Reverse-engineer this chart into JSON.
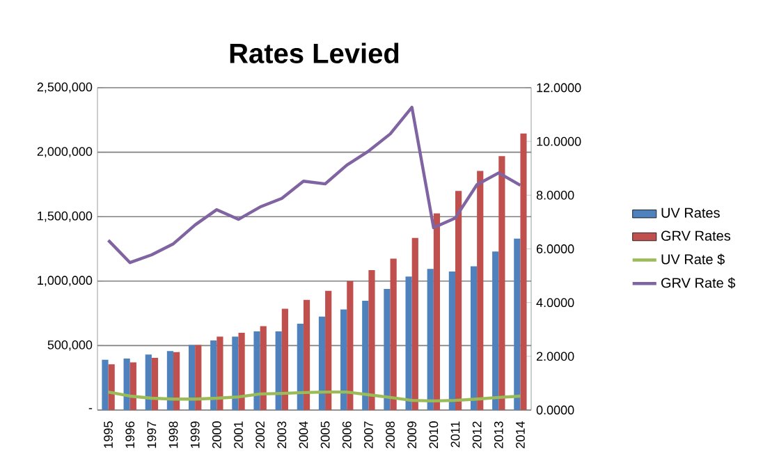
{
  "chart_data": {
    "type": "bar",
    "title": "Rates Levied",
    "categories": [
      "1995",
      "1996",
      "1997",
      "1998",
      "1999",
      "2000",
      "2001",
      "2002",
      "2003",
      "2004",
      "2005",
      "2006",
      "2007",
      "2008",
      "2009",
      "2010",
      "2011",
      "2012",
      "2013",
      "2014"
    ],
    "series": [
      {
        "name": "UV Rates",
        "color": "#4f81bd",
        "values": [
          390000,
          400000,
          430000,
          458000,
          505000,
          540000,
          570000,
          610000,
          610000,
          670000,
          725000,
          780000,
          848000,
          940000,
          1035000,
          1095000,
          1075000,
          1115000,
          1230000,
          1330000
        ]
      },
      {
        "name": "GRV Rates",
        "color": "#c0504d",
        "values": [
          355000,
          370000,
          405000,
          450000,
          505000,
          570000,
          600000,
          650000,
          785000,
          855000,
          925000,
          1000000,
          1085000,
          1175000,
          1335000,
          1525000,
          1700000,
          1855000,
          1970000,
          2145000
        ]
      },
      {
        "name": "UV Rate $",
        "type": "line",
        "axis": "y2",
        "color": "#9bbb59",
        "values": [
          0.67,
          0.52,
          0.44,
          0.41,
          0.41,
          0.44,
          0.49,
          0.6,
          0.62,
          0.65,
          0.67,
          0.67,
          0.57,
          0.47,
          0.36,
          0.34,
          0.36,
          0.41,
          0.47,
          0.52
        ]
      },
      {
        "name": "GRV Rate $",
        "type": "line",
        "axis": "y2",
        "color": "#8064a2",
        "values": [
          6.32,
          5.49,
          5.78,
          6.19,
          6.89,
          7.46,
          7.1,
          7.56,
          7.88,
          8.52,
          8.42,
          9.12,
          9.64,
          10.28,
          11.27,
          6.79,
          7.15,
          8.39,
          8.83,
          8.37
        ]
      }
    ],
    "ylim": [
      0,
      2500000
    ],
    "yticks": [
      {
        "value": 0,
        "label": "-"
      },
      {
        "value": 500000,
        "label": "500,000"
      },
      {
        "value": 1000000,
        "label": "1,000,000"
      },
      {
        "value": 1500000,
        "label": "1,500,000"
      },
      {
        "value": 2000000,
        "label": "2,000,000"
      },
      {
        "value": 2500000,
        "label": "2,500,000"
      }
    ],
    "y2lim": [
      0,
      12
    ],
    "y2ticks": [
      {
        "value": 0,
        "label": "0.0000"
      },
      {
        "value": 2,
        "label": "2.0000"
      },
      {
        "value": 4,
        "label": "4.0000"
      },
      {
        "value": 6,
        "label": "6.0000"
      },
      {
        "value": 8,
        "label": "8.0000"
      },
      {
        "value": 10,
        "label": "10.0000"
      },
      {
        "value": 12,
        "label": "12.0000"
      }
    ],
    "grid": "y",
    "legend": "right"
  }
}
